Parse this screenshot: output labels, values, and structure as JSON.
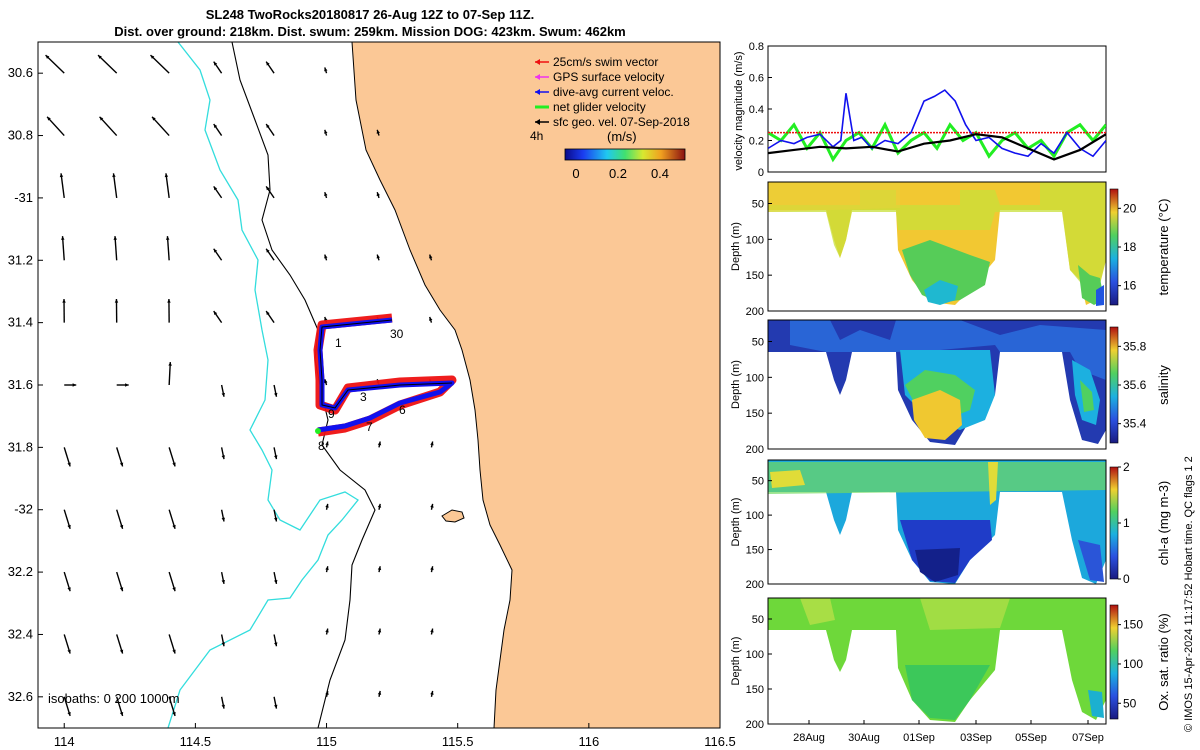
{
  "title": {
    "line1": "SL248 TwoRocks20180817 26-Aug 12Z to 07-Sep 11Z.",
    "line2": "Dist. over ground: 218km. Dist. swum: 259km. Mission DOG: 423km. Swum: 462km"
  },
  "credit": "© IMOS 15-Apr-2024 11:17:52 Hobart time. QC flags 1  2",
  "colors": {
    "land": "#fbc896",
    "coast": "#000000",
    "isobath_200": "#000000",
    "isobath_1000": "#33dddd",
    "swim_vector": "#ee1111",
    "gps_velocity": "#ee33ee",
    "dive_current": "#1111ee",
    "net_velocity": "#22ee22",
    "sfc_geo": "#000000"
  },
  "chart_data": [
    {
      "id": "map",
      "type": "map",
      "xlim": [
        113.9,
        116.5
      ],
      "ylim": [
        -32.7,
        -30.5
      ],
      "xticks": [
        114,
        114.5,
        115,
        115.5,
        116,
        116.5
      ],
      "xtick_labels": [
        "114",
        "114.5",
        "115",
        "115.5",
        "116",
        "116.5"
      ],
      "yticks": [
        -30.6,
        -30.8,
        -31,
        -31.2,
        -31.4,
        -31.6,
        -31.8,
        -32,
        -32.2,
        -32.4,
        -32.6
      ],
      "ytick_labels": [
        "30.6",
        "30.8",
        "-31",
        "31.2",
        "31.4",
        "31.6",
        "31.8",
        "-32",
        "32.2",
        "32.4",
        "32.6"
      ],
      "legend": {
        "entries": [
          "25cm/s swim vector",
          "GPS surface velocity",
          "dive-avg current veloc.",
          "net glider velocity",
          "sfc geo. vel. 07-Sep-2018"
        ],
        "note": "4h",
        "colorbar_label": "(m/s)",
        "colorbar_ticks": [
          "0",
          "0.2",
          "0.4"
        ]
      },
      "isobath_label": "isobaths: 0   200  1000m",
      "track_labels": [
        "1",
        "30",
        "3",
        "6",
        "9",
        "7",
        "8"
      ],
      "track_points": [
        [
          115.24,
          -31.38
        ],
        [
          115.02,
          -31.42
        ],
        [
          115.02,
          -31.5
        ],
        [
          115.02,
          -31.58
        ],
        [
          115.07,
          -31.62
        ],
        [
          115.14,
          -31.58
        ],
        [
          115.3,
          -31.59
        ],
        [
          115.48,
          -31.58
        ],
        [
          115.4,
          -31.6
        ],
        [
          115.26,
          -31.66
        ],
        [
          115.14,
          -31.7
        ],
        [
          115.0,
          -31.72
        ]
      ]
    },
    {
      "id": "velocity",
      "type": "line",
      "ylabel": "velocity magnitude (m/s)",
      "ylim": [
        0,
        0.8
      ],
      "yticks": [
        0,
        0.2,
        0.4,
        0.6,
        0.8
      ],
      "ytick_labels": [
        "0",
        "0.2",
        "0.4",
        "0.6",
        "0.8"
      ],
      "xlim": [
        0,
        13
      ],
      "series": [
        {
          "name": "dive-avg current veloc.",
          "color": "#1111ee",
          "x": [
            0,
            0.5,
            1,
            1.5,
            2,
            2.5,
            2.8,
            3,
            3.3,
            3.6,
            4,
            4.5,
            5,
            5.5,
            6,
            6.4,
            6.8,
            7.2,
            7.6,
            8,
            8.5,
            9,
            9.5,
            10,
            10.5,
            11,
            11.5,
            12,
            12.5,
            13
          ],
          "y": [
            0.15,
            0.2,
            0.18,
            0.22,
            0.24,
            0.16,
            0.2,
            0.5,
            0.2,
            0.22,
            0.15,
            0.2,
            0.18,
            0.25,
            0.45,
            0.48,
            0.52,
            0.45,
            0.3,
            0.2,
            0.22,
            0.15,
            0.12,
            0.1,
            0.18,
            0.12,
            0.25,
            0.15,
            0.1,
            0.2
          ]
        },
        {
          "name": "net glider velocity",
          "color": "#22ee22",
          "x": [
            0,
            0.5,
            1,
            1.5,
            2,
            2.5,
            3,
            3.5,
            4,
            4.5,
            5,
            5.5,
            6,
            6.5,
            7,
            7.5,
            8,
            8.5,
            9,
            9.5,
            10,
            10.5,
            11,
            11.5,
            12,
            12.5,
            13
          ],
          "y": [
            0.25,
            0.2,
            0.3,
            0.15,
            0.25,
            0.08,
            0.2,
            0.25,
            0.15,
            0.3,
            0.12,
            0.2,
            0.25,
            0.15,
            0.3,
            0.2,
            0.25,
            0.1,
            0.2,
            0.25,
            0.15,
            0.2,
            0.1,
            0.25,
            0.3,
            0.2,
            0.3
          ]
        },
        {
          "name": "25cm/s swim vector",
          "color": "#ee1111",
          "x": [
            0,
            13
          ],
          "y": [
            0.25,
            0.25
          ]
        },
        {
          "name": "sfc geo. vel. 07-Sep-2018",
          "color": "#000000",
          "x": [
            0,
            1,
            2,
            3,
            4,
            5,
            6,
            7,
            8,
            9,
            10,
            11,
            12,
            13
          ],
          "y": [
            0.12,
            0.14,
            0.16,
            0.15,
            0.16,
            0.13,
            0.18,
            0.2,
            0.24,
            0.22,
            0.15,
            0.08,
            0.14,
            0.24
          ]
        }
      ]
    },
    {
      "id": "temperature",
      "type": "heatmap",
      "ylabel": "Depth (m)",
      "cbar_label": "temperature (°C)",
      "yticks": [
        "50",
        "100",
        "150",
        "200"
      ],
      "cbar_ticks": [
        "16",
        "18",
        "20"
      ],
      "clim": [
        15,
        21
      ]
    },
    {
      "id": "salinity",
      "type": "heatmap",
      "ylabel": "Depth (m)",
      "cbar_label": "salinity",
      "yticks": [
        "50",
        "100",
        "150",
        "200"
      ],
      "cbar_ticks": [
        "35.4",
        "35.6",
        "35.8"
      ],
      "clim": [
        35.3,
        35.9
      ]
    },
    {
      "id": "chla",
      "type": "heatmap",
      "ylabel": "Depth (m)",
      "cbar_label": "chl-a (mg m-3)",
      "yticks": [
        "50",
        "100",
        "150",
        "200"
      ],
      "cbar_ticks": [
        "0",
        "1",
        "2"
      ],
      "clim": [
        0,
        2
      ]
    },
    {
      "id": "oxygen",
      "type": "heatmap",
      "ylabel": "Depth (m)",
      "cbar_label": "Ox. sat. ratio (%)",
      "yticks": [
        "50",
        "100",
        "150",
        "200"
      ],
      "cbar_ticks": [
        "50",
        "100",
        "150"
      ],
      "clim": [
        30,
        175
      ]
    },
    {
      "id": "time_axis",
      "type": "axis",
      "tick_labels": [
        "28Aug",
        "30Aug",
        "01Sep",
        "03Sep",
        "05Sep",
        "07Sep"
      ]
    }
  ]
}
